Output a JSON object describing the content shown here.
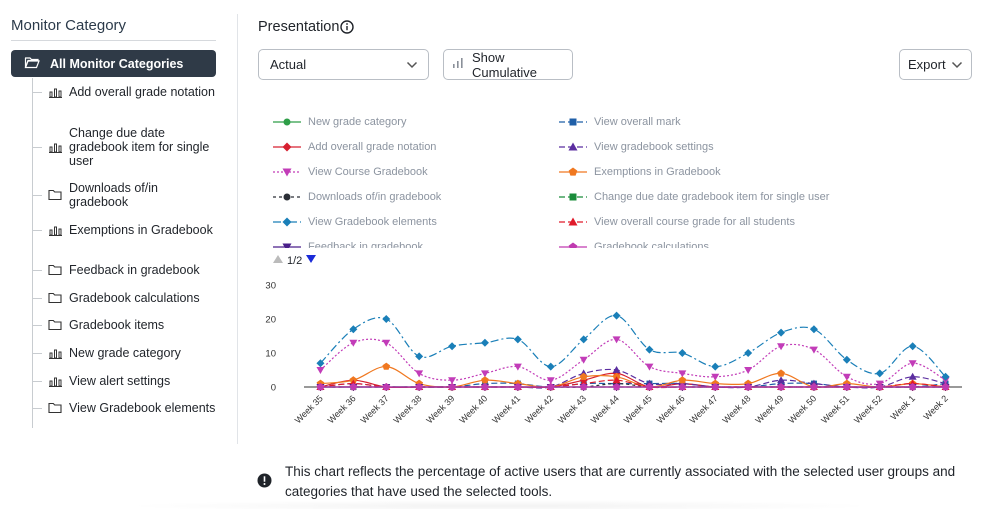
{
  "sidebar": {
    "title": "Monitor Category",
    "active_label": "All Monitor Categories",
    "items": [
      {
        "label": "Add overall grade notation",
        "icon": "bar-chart-icon"
      },
      {
        "label": "Change due date gradebook item for single user",
        "icon": "bar-chart-icon"
      },
      {
        "label": "Downloads of/in gradebook",
        "icon": "folder-icon"
      },
      {
        "label": "Exemptions in Gradebook",
        "icon": "bar-chart-icon"
      },
      {
        "label": "Feedback in gradebook",
        "icon": "folder-icon"
      },
      {
        "label": "Gradebook calculations",
        "icon": "folder-icon"
      },
      {
        "label": "Gradebook items",
        "icon": "folder-icon"
      },
      {
        "label": "New grade category",
        "icon": "bar-chart-icon"
      },
      {
        "label": "View alert settings",
        "icon": "bar-chart-icon"
      },
      {
        "label": "View Gradebook elements",
        "icon": "folder-icon"
      }
    ]
  },
  "main": {
    "title": "Presentation",
    "mode_select": "Actual",
    "cumulative_label": "Show Cumulative",
    "export_label": "Export",
    "pager": "1/2",
    "note": "This chart reflects the percentage of active users that are currently associated with the selected user groups and categories that have used the selected tools."
  },
  "chart_data": {
    "type": "line",
    "title": "",
    "xlabel": "",
    "ylabel": "",
    "ylim": [
      0,
      30
    ],
    "yticks": [
      "30",
      "20",
      "10",
      "0"
    ],
    "categories": [
      "Week 35",
      "Week 36",
      "Week 37",
      "Week 38",
      "Week 39",
      "Week 40",
      "Week 41",
      "Week 42",
      "Week 43",
      "Week 44",
      "Week 45",
      "Week 46",
      "Week 47",
      "Week 48",
      "Week 49",
      "Week 50",
      "Week 51",
      "Week 52",
      "Week 1",
      "Week 2"
    ],
    "series": [
      {
        "name": "New grade category",
        "color": "#2e9e48",
        "marker": "circle",
        "dash": "",
        "values": [
          0,
          0,
          0,
          0,
          0,
          0,
          0,
          0,
          0,
          0,
          0,
          0,
          0,
          0,
          0,
          0,
          0,
          0,
          0,
          0
        ]
      },
      {
        "name": "View overall mark",
        "color": "#1f5fa8",
        "marker": "square",
        "dash": "6 3",
        "values": [
          0,
          0,
          0,
          0,
          0,
          1,
          1,
          0,
          1,
          1,
          1,
          1,
          0,
          0,
          1,
          1,
          0,
          0,
          0,
          1
        ]
      },
      {
        "name": "Add overall grade notation",
        "color": "#d62030",
        "marker": "diamond",
        "dash": "",
        "values": [
          0,
          2,
          0,
          0,
          0,
          0,
          0,
          0,
          2,
          4,
          0,
          1,
          0,
          0,
          0,
          0,
          0,
          0,
          0,
          0
        ]
      },
      {
        "name": "View gradebook settings",
        "color": "#5b2ea0",
        "marker": "triangle",
        "dash": "6 3",
        "values": [
          0,
          1,
          0,
          0,
          0,
          0,
          0,
          0,
          4,
          5,
          1,
          1,
          0,
          0,
          2,
          1,
          0,
          0,
          3,
          1
        ]
      },
      {
        "name": "View Course Gradebook",
        "color": "#c23cb8",
        "marker": "triangle-down",
        "dash": "2 2",
        "values": [
          5,
          13,
          13,
          4,
          2,
          4,
          6,
          2,
          8,
          14,
          6,
          4,
          3,
          5,
          12,
          11,
          3,
          1,
          7,
          2
        ]
      },
      {
        "name": "Exemptions in Gradebook",
        "color": "#f07820",
        "marker": "pentagon",
        "dash": "",
        "values": [
          1,
          2,
          6,
          1,
          0,
          2,
          1,
          0,
          3,
          3,
          0,
          2,
          1,
          1,
          4,
          0,
          1,
          0,
          1,
          0
        ]
      },
      {
        "name": "Downloads of/in gradebook",
        "color": "#2b2f36",
        "marker": "circle",
        "dash": "3 3",
        "values": [
          0,
          0,
          0,
          0,
          0,
          0,
          0,
          0,
          0,
          1,
          0,
          0,
          0,
          0,
          0,
          0,
          0,
          0,
          0,
          0
        ]
      },
      {
        "name": "Change due date gradebook item for single user",
        "color": "#1a8c3a",
        "marker": "square",
        "dash": "6 3",
        "values": [
          0,
          0,
          0,
          0,
          0,
          0,
          0,
          0,
          0,
          0,
          0,
          0,
          0,
          0,
          0,
          0,
          0,
          0,
          0,
          0
        ]
      },
      {
        "name": "View Gradebook elements",
        "color": "#1a7fb8",
        "marker": "diamond",
        "dash": "8 3 2 3",
        "values": [
          7,
          17,
          20,
          9,
          12,
          13,
          14,
          6,
          14,
          21,
          11,
          10,
          6,
          10,
          16,
          17,
          8,
          4,
          12,
          3
        ]
      },
      {
        "name": "View overall course grade for all students",
        "color": "#e01a2a",
        "marker": "triangle",
        "dash": "6 3",
        "values": [
          0,
          1,
          0,
          0,
          0,
          0,
          0,
          0,
          1,
          2,
          0,
          0,
          0,
          0,
          0,
          0,
          0,
          0,
          1,
          0
        ]
      },
      {
        "name": "Feedback in gradebook",
        "color": "#4a1f8a",
        "marker": "triangle-down",
        "dash": "",
        "values": [
          0,
          0,
          0,
          0,
          0,
          0,
          0,
          0,
          0,
          0,
          0,
          0,
          0,
          0,
          0,
          0,
          0,
          0,
          0,
          0
        ]
      },
      {
        "name": "Gradebook calculations",
        "color": "#c03ab0",
        "marker": "pentagon",
        "dash": "",
        "values": [
          0,
          0,
          0,
          0,
          0,
          0,
          0,
          0,
          0,
          0,
          0,
          0,
          0,
          0,
          0,
          0,
          0,
          0,
          0,
          0
        ]
      }
    ]
  },
  "colors": {
    "active_bg": "#2f3a47",
    "border": "#b9bec5",
    "axis": "#333333"
  }
}
